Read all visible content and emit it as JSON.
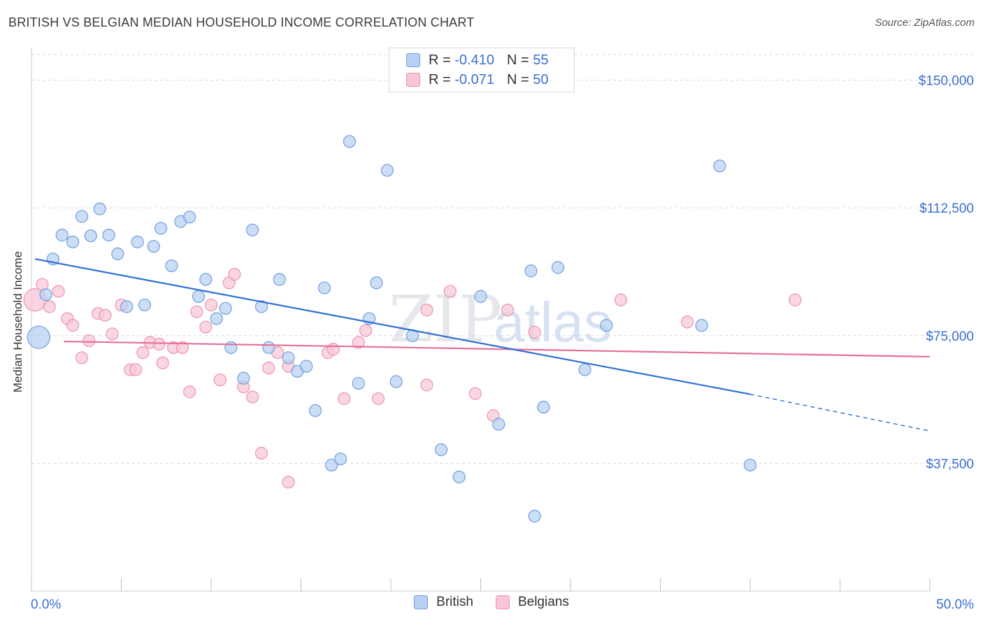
{
  "title": "BRITISH VS BELGIAN MEDIAN HOUSEHOLD INCOME CORRELATION CHART",
  "source": "Source: ZipAtlas.com",
  "watermark": {
    "zip": "ZIP",
    "atlas": "atlas"
  },
  "legend_top": {
    "british": {
      "r_label": "R =",
      "r_value": "-0.410",
      "n_label": "N =",
      "n_value": "55"
    },
    "belgians": {
      "r_label": "R =",
      "r_value": "-0.071",
      "n_label": "N =",
      "n_value": "50"
    }
  },
  "legend_bottom": {
    "british": "British",
    "belgians": "Belgians"
  },
  "colors": {
    "british_fill": "#b8d0f2",
    "british_stroke": "#6f9fe0",
    "british_line": "#2e6fd4",
    "belgians_fill": "#f8c6d5",
    "belgians_stroke": "#ec94b0",
    "belgians_line": "#e56f96",
    "tick_label": "#3a6fd1",
    "grid": "#d8d8d8"
  },
  "chart_data": {
    "type": "scatter",
    "title": "BRITISH VS BELGIAN MEDIAN HOUSEHOLD INCOME CORRELATION CHART",
    "xlabel": "",
    "ylabel": "Median Household Income",
    "xlim": [
      0,
      50
    ],
    "ylim": [
      0,
      157500
    ],
    "x_tick_labels": [
      "0.0%",
      "50.0%"
    ],
    "y_ticks": [
      37500,
      75000,
      112500,
      150000
    ],
    "y_tick_labels": [
      "$37,500",
      "$75,000",
      "$112,500",
      "$150,000"
    ],
    "grid": "horizontal dashed",
    "legend_placement": "top-center and bottom-center",
    "series": [
      {
        "name": "British",
        "r": -0.41,
        "n": 55,
        "trend": {
          "x": [
            0.2,
            40
          ],
          "y": [
            97500,
            57800
          ],
          "dashed_to": [
            50,
            47000
          ]
        },
        "points": [
          [
            0.4,
            74500,
            "big"
          ],
          [
            0.8,
            87000
          ],
          [
            1.2,
            97500
          ],
          [
            1.7,
            104500
          ],
          [
            2.3,
            102500
          ],
          [
            2.8,
            110000
          ],
          [
            3.3,
            104300
          ],
          [
            3.8,
            112200
          ],
          [
            4.3,
            104500
          ],
          [
            4.8,
            99000
          ],
          [
            5.3,
            83500
          ],
          [
            5.9,
            102500
          ],
          [
            6.3,
            84000
          ],
          [
            6.8,
            101200
          ],
          [
            7.2,
            106500
          ],
          [
            7.8,
            95500
          ],
          [
            8.3,
            108500
          ],
          [
            8.8,
            109800
          ],
          [
            9.3,
            86500
          ],
          [
            9.7,
            91500
          ],
          [
            10.3,
            80000
          ],
          [
            10.8,
            83000
          ],
          [
            11.1,
            71500
          ],
          [
            11.8,
            62500
          ],
          [
            12.3,
            106000
          ],
          [
            12.8,
            83500
          ],
          [
            13.2,
            71500
          ],
          [
            13.8,
            91500
          ],
          [
            14.3,
            68500
          ],
          [
            14.8,
            64500
          ],
          [
            15.3,
            66000
          ],
          [
            15.8,
            53000
          ],
          [
            16.3,
            89000
          ],
          [
            16.7,
            37000
          ],
          [
            17.2,
            38800
          ],
          [
            17.7,
            132000
          ],
          [
            18.2,
            61000
          ],
          [
            18.8,
            80000
          ],
          [
            19.2,
            90500
          ],
          [
            19.8,
            123500
          ],
          [
            20.3,
            61500
          ],
          [
            21.2,
            75000
          ],
          [
            22.8,
            41500
          ],
          [
            23.8,
            33500
          ],
          [
            25.0,
            86500
          ],
          [
            26.0,
            49000
          ],
          [
            27.8,
            94000
          ],
          [
            28.0,
            22000
          ],
          [
            28.5,
            54000
          ],
          [
            29.3,
            95000
          ],
          [
            30.8,
            65000
          ],
          [
            32.0,
            78000
          ],
          [
            38.3,
            124800
          ],
          [
            37.3,
            78000
          ],
          [
            40.0,
            37000
          ]
        ]
      },
      {
        "name": "Belgians",
        "r": -0.071,
        "n": 50,
        "trend": {
          "x": [
            1.8,
            50
          ],
          "y": [
            73300,
            68800
          ]
        },
        "points": [
          [
            0.2,
            85500,
            "big"
          ],
          [
            0.6,
            90000
          ],
          [
            1.0,
            83500
          ],
          [
            1.5,
            88000
          ],
          [
            2.0,
            80000
          ],
          [
            2.3,
            78000
          ],
          [
            2.8,
            68500
          ],
          [
            3.2,
            73500
          ],
          [
            3.7,
            81500
          ],
          [
            4.1,
            81000
          ],
          [
            4.5,
            75500
          ],
          [
            5.0,
            84000
          ],
          [
            5.5,
            65000
          ],
          [
            5.8,
            65000
          ],
          [
            6.2,
            70000
          ],
          [
            6.6,
            73000
          ],
          [
            7.1,
            72500
          ],
          [
            7.3,
            67000
          ],
          [
            7.9,
            71500
          ],
          [
            8.4,
            71500
          ],
          [
            8.8,
            58500
          ],
          [
            9.2,
            82000
          ],
          [
            9.7,
            77500
          ],
          [
            10.0,
            84000
          ],
          [
            10.5,
            62000
          ],
          [
            11.0,
            90500
          ],
          [
            11.3,
            93000
          ],
          [
            11.8,
            60000
          ],
          [
            12.3,
            57000
          ],
          [
            12.8,
            40500
          ],
          [
            13.2,
            65500
          ],
          [
            13.7,
            70000
          ],
          [
            14.3,
            66000
          ],
          [
            14.3,
            32000
          ],
          [
            16.5,
            70000
          ],
          [
            16.8,
            71000
          ],
          [
            17.4,
            56500
          ],
          [
            18.2,
            73000
          ],
          [
            18.6,
            76500
          ],
          [
            19.3,
            56500
          ],
          [
            22.0,
            82500
          ],
          [
            22.0,
            60500
          ],
          [
            23.3,
            88000
          ],
          [
            24.7,
            58000
          ],
          [
            25.7,
            51500
          ],
          [
            26.5,
            82500
          ],
          [
            28.0,
            76000
          ],
          [
            32.8,
            85500
          ],
          [
            36.5,
            79000
          ],
          [
            42.5,
            85500
          ]
        ]
      }
    ]
  }
}
